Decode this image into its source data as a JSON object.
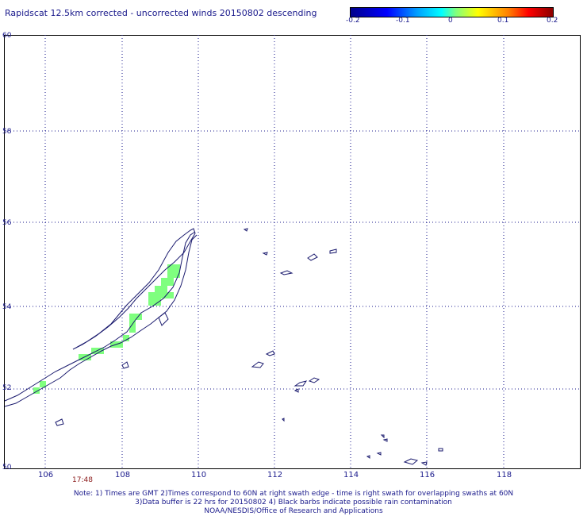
{
  "title": "Rapidscat 12.5km corrected - uncorrected winds 20150802 descending",
  "colorbar": {
    "labels": [
      "-0.2",
      "-0.1",
      "0",
      "0.1",
      "0.2"
    ],
    "colors": [
      "#00008b",
      "#0000ff",
      "#00ffff",
      "#ffff00",
      "#ff0000",
      "#8b0000"
    ]
  },
  "axes": {
    "x_ticks": [
      "106",
      "108",
      "110",
      "112",
      "114",
      "116",
      "118"
    ],
    "y_ticks": [
      "60",
      "58",
      "56",
      "54",
      "52",
      "50"
    ],
    "lon_range": [
      105,
      120
    ],
    "lat_range": [
      50,
      60
    ]
  },
  "swath_time": "17:48",
  "notes": [
    "Note: 1) Times are GMT 2)Times correspond to 60N at right swath edge - time is right swath for overlapping swaths at 60N",
    "3)Data buffer is 22 hrs for 20150802 4) Black barbs indicate possible rain contamination",
    "NOAA/NESDIS/Office of Research and Applications"
  ],
  "data_color": "#7fff7f",
  "coast_color": "#1a1a6e"
}
